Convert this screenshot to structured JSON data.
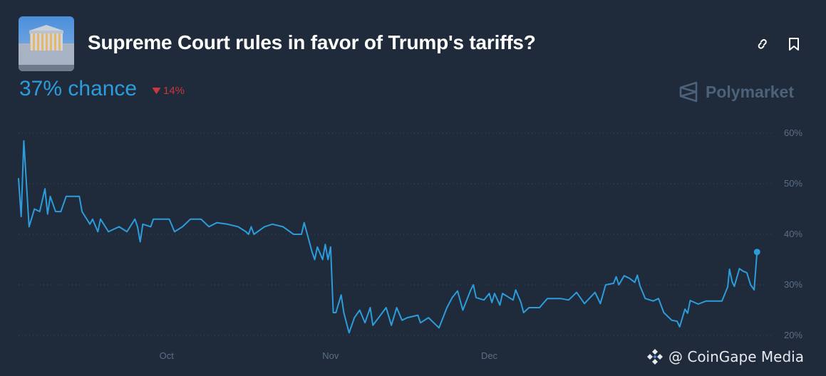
{
  "header": {
    "title": "Supreme Court rules in favor of Trump's tariffs?",
    "chance_label": "37% chance",
    "change_label": "14%",
    "change_direction": "down",
    "icons": [
      "link-icon",
      "bookmark-icon"
    ],
    "brand": "Polymarket"
  },
  "watermark": "@ CoinGape Media",
  "colors": {
    "background": "#1f2a3b",
    "line": "#2d9cdb",
    "down": "#c8383c",
    "brand": "#4b6279",
    "axis_text": "#5b6f86"
  },
  "chart_data": {
    "type": "line",
    "title": "",
    "xlabel": "",
    "ylabel": "",
    "xlim": [
      "2025-09-03",
      "2026-01-21"
    ],
    "ylim": [
      20,
      60
    ],
    "y_ticks": [
      60,
      50,
      40,
      30,
      20
    ],
    "y_tick_labels": [
      "60%",
      "50%",
      "40%",
      "30%",
      "20%"
    ],
    "x_ticks": [
      "2025-10-01",
      "2025-11-01",
      "2025-12-01"
    ],
    "x_tick_labels": [
      "Oct",
      "Nov",
      "Dec"
    ],
    "y_axis_side": "right",
    "grid": "horizontal dotted",
    "end_marker": true,
    "series": [
      {
        "points": [
          [
            "2025-09-03T00:00",
            51
          ],
          [
            "2025-09-03T12:00",
            43.5
          ],
          [
            "2025-09-04T00:00",
            58.5
          ],
          [
            "2025-09-05T00:00",
            41.5
          ],
          [
            "2025-09-06T00:00",
            45
          ],
          [
            "2025-09-07T00:00",
            44.5
          ],
          [
            "2025-09-08T00:00",
            49
          ],
          [
            "2025-09-08T12:00",
            44
          ],
          [
            "2025-09-09T00:00",
            47.5
          ],
          [
            "2025-09-10T00:00",
            44.5
          ],
          [
            "2025-09-11T00:00",
            44.5
          ],
          [
            "2025-09-12T00:00",
            47.5
          ],
          [
            "2025-09-14T12:00",
            47.5
          ],
          [
            "2025-09-15T00:00",
            44.5
          ],
          [
            "2025-09-16T12:00",
            42
          ],
          [
            "2025-09-17T00:00",
            43
          ],
          [
            "2025-09-18T00:00",
            40.5
          ],
          [
            "2025-09-18T12:00",
            43
          ],
          [
            "2025-09-20T00:00",
            40.5
          ],
          [
            "2025-09-22T00:00",
            41.5
          ],
          [
            "2025-09-23T12:00",
            40.5
          ],
          [
            "2025-09-25T00:00",
            43
          ],
          [
            "2025-09-25T12:00",
            41.5
          ],
          [
            "2025-09-26T00:00",
            38.5
          ],
          [
            "2025-09-26T12:00",
            42
          ],
          [
            "2025-09-28T00:00",
            41.5
          ],
          [
            "2025-09-28T12:00",
            43
          ],
          [
            "2025-09-29T12:00",
            43
          ],
          [
            "2025-10-01T12:00",
            43
          ],
          [
            "2025-10-02T12:00",
            40.5
          ],
          [
            "2025-10-04T00:00",
            41.5
          ],
          [
            "2025-10-05T12:00",
            43
          ],
          [
            "2025-10-07T12:00",
            43
          ],
          [
            "2025-10-09T00:00",
            41.5
          ],
          [
            "2025-10-10T12:00",
            42.3
          ],
          [
            "2025-10-12T12:00",
            42
          ],
          [
            "2025-10-14T12:00",
            41.5
          ],
          [
            "2025-10-16T00:00",
            40.5
          ],
          [
            "2025-10-16T12:00",
            40
          ],
          [
            "2025-10-17T00:00",
            41.5
          ],
          [
            "2025-10-17T12:00",
            40
          ],
          [
            "2025-10-19T12:00",
            41.5
          ],
          [
            "2025-10-21T00:00",
            42
          ],
          [
            "2025-10-23T00:00",
            41.5
          ],
          [
            "2025-10-25T00:00",
            40
          ],
          [
            "2025-10-26T12:00",
            40
          ],
          [
            "2025-10-27T00:00",
            42.3
          ],
          [
            "2025-10-28T12:00",
            36.5
          ],
          [
            "2025-10-29T00:00",
            35
          ],
          [
            "2025-10-29T12:00",
            37.5
          ],
          [
            "2025-10-30T12:00",
            35
          ],
          [
            "2025-10-31T00:00",
            38
          ],
          [
            "2025-10-31T12:00",
            35
          ],
          [
            "2025-11-01T00:00",
            37.5
          ],
          [
            "2025-11-01T12:00",
            24.5
          ],
          [
            "2025-11-02T00:00",
            24.5
          ],
          [
            "2025-11-03T00:00",
            28
          ],
          [
            "2025-11-03T12:00",
            24.5
          ],
          [
            "2025-11-04T12:00",
            20.5
          ],
          [
            "2025-11-05T12:00",
            23.5
          ],
          [
            "2025-11-06T12:00",
            25
          ],
          [
            "2025-11-07T12:00",
            22.5
          ],
          [
            "2025-11-08T12:00",
            25.5
          ],
          [
            "2025-11-09T00:00",
            22
          ],
          [
            "2025-11-11T12:00",
            25.5
          ],
          [
            "2025-11-12T12:00",
            22
          ],
          [
            "2025-11-13T12:00",
            25.5
          ],
          [
            "2025-11-14T12:00",
            23
          ],
          [
            "2025-11-15T12:00",
            23.5
          ],
          [
            "2025-11-17T12:00",
            24
          ],
          [
            "2025-11-18T00:00",
            22.5
          ],
          [
            "2025-11-19T12:00",
            23.5
          ],
          [
            "2025-11-21T00:00",
            22
          ],
          [
            "2025-11-21T12:00",
            21.5
          ],
          [
            "2025-11-23T00:00",
            25.5
          ],
          [
            "2025-11-24T00:00",
            27.5
          ],
          [
            "2025-11-25T00:00",
            28.8
          ],
          [
            "2025-11-26T00:00",
            25
          ],
          [
            "2025-11-27T12:00",
            29
          ],
          [
            "2025-11-28T00:00",
            30
          ],
          [
            "2025-11-28T12:00",
            27.5
          ],
          [
            "2025-11-30T00:00",
            27
          ],
          [
            "2025-12-01T00:00",
            28.3
          ],
          [
            "2025-12-01T12:00",
            26.5
          ],
          [
            "2025-12-02T00:00",
            28.3
          ],
          [
            "2025-12-03T00:00",
            26
          ],
          [
            "2025-12-03T12:00",
            28.3
          ],
          [
            "2025-12-05T12:00",
            27
          ],
          [
            "2025-12-06T00:00",
            29
          ],
          [
            "2025-12-07T00:00",
            26.5
          ],
          [
            "2025-12-07T12:00",
            24.5
          ],
          [
            "2025-12-08T12:00",
            25.5
          ],
          [
            "2025-12-10T12:00",
            25.5
          ],
          [
            "2025-12-12T00:00",
            27.3
          ],
          [
            "2025-12-14T12:00",
            27.3
          ],
          [
            "2025-12-16T00:00",
            27
          ],
          [
            "2025-12-17T12:00",
            28.5
          ],
          [
            "2025-12-19T00:00",
            26.3
          ],
          [
            "2025-12-21T00:00",
            28.5
          ],
          [
            "2025-12-22T00:00",
            26.3
          ],
          [
            "2025-12-23T00:00",
            30
          ],
          [
            "2025-12-24T12:00",
            30.3
          ],
          [
            "2025-12-25T00:00",
            31.6
          ],
          [
            "2025-12-25T12:00",
            30
          ],
          [
            "2025-12-26T12:00",
            31.8
          ],
          [
            "2025-12-27T12:00",
            31.3
          ],
          [
            "2025-12-28T12:00",
            30.5
          ],
          [
            "2025-12-29T00:00",
            31.9
          ],
          [
            "2025-12-29T12:00",
            29.8
          ],
          [
            "2025-12-30T12:00",
            27.3
          ],
          [
            "2026-01-01T00:00",
            26.8
          ],
          [
            "2026-01-02T00:00",
            27.3
          ],
          [
            "2026-01-03T00:00",
            24.5
          ],
          [
            "2026-01-04T12:00",
            23
          ],
          [
            "2026-01-05T12:00",
            22.8
          ],
          [
            "2026-01-06T00:00",
            21.7
          ],
          [
            "2026-01-07T00:00",
            25.2
          ],
          [
            "2026-01-07T12:00",
            24.4
          ],
          [
            "2026-01-08T00:00",
            26.9
          ],
          [
            "2026-01-09T12:00",
            26.2
          ],
          [
            "2026-01-11T00:00",
            26.8
          ],
          [
            "2026-01-14T00:00",
            26.8
          ],
          [
            "2026-01-15T02:00",
            29.6
          ],
          [
            "2026-01-15T10:00",
            33.1
          ],
          [
            "2026-01-15T22:00",
            30.6
          ],
          [
            "2026-01-16T08:00",
            29.7
          ],
          [
            "2026-01-17T07:00",
            33.2
          ],
          [
            "2026-01-18T00:00",
            32.7
          ],
          [
            "2026-01-18T17:00",
            32.4
          ],
          [
            "2026-01-19T10:00",
            30
          ],
          [
            "2026-01-20T02:00",
            29
          ],
          [
            "2026-01-20T15:00",
            36.5
          ]
        ]
      }
    ]
  }
}
